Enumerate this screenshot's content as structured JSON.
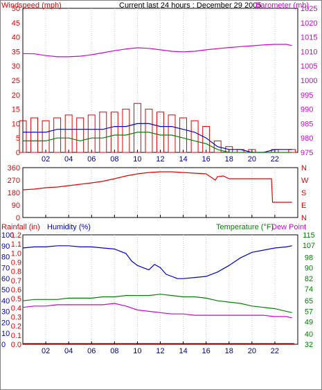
{
  "header": {
    "left_label": "Windspeed (mph)",
    "center_title": "Current last 24 hours : December 29 2005",
    "right_label": "Barometer (mb)"
  },
  "hour_ticks": [
    "02",
    "04",
    "06",
    "08",
    "10",
    "12",
    "14",
    "16",
    "18",
    "20",
    "22"
  ],
  "colors": {
    "windspeed": "#e00000",
    "windgust": "#e00000",
    "wind_avg": "#0000c0",
    "wind_low": "#008000",
    "barometer": "#d000d0",
    "direction": "#e00000",
    "humidity": "#0000c0",
    "temperature": "#008000",
    "dewpoint": "#d000d0",
    "rainfall": "#e00000",
    "frame": "#000000"
  },
  "chart_data": [
    {
      "type": "line",
      "title": "Current last 24 hours : December 29 2005",
      "xlabel": "",
      "ylabel": "Windspeed (mph)",
      "ylabel_right": "Barometer (mb)",
      "xlim": [
        0,
        24
      ],
      "ylim": [
        0,
        50
      ],
      "ylim_right": [
        975,
        1025
      ],
      "yticks": [
        0,
        5,
        10,
        15,
        20,
        25,
        30,
        35,
        40,
        45,
        50
      ],
      "yticks_right": [
        975,
        980,
        985,
        990,
        995,
        1000,
        1005,
        1010,
        1015,
        1020,
        1025
      ],
      "series": [
        {
          "name": "Windspeed (mph)",
          "axis": "left",
          "style": "bars",
          "x": [
            0,
            1,
            2,
            3,
            4,
            5,
            6,
            7,
            8,
            9,
            10,
            11,
            12,
            13,
            14,
            15,
            16,
            17,
            18,
            19,
            20,
            21,
            22,
            23.5
          ],
          "values": [
            11,
            12,
            11,
            12,
            13,
            12,
            13,
            14,
            14,
            15,
            17,
            15,
            14,
            13,
            12,
            11,
            9,
            4,
            2,
            1,
            1,
            0,
            1,
            1
          ]
        },
        {
          "name": "",
          "axis": "left",
          "x": [
            0,
            1,
            2,
            3,
            4,
            5,
            6,
            7,
            8,
            9,
            10,
            11,
            12,
            13,
            14,
            15,
            16,
            17,
            18,
            19,
            20,
            21,
            22,
            23.5
          ],
          "values": [
            7,
            7,
            7,
            8,
            8,
            8,
            8,
            8,
            9,
            9,
            10,
            10,
            9,
            9,
            8,
            7,
            5,
            2,
            1,
            1,
            0,
            0,
            1,
            1
          ]
        },
        {
          "name": "",
          "axis": "left",
          "x": [
            0,
            1,
            2,
            3,
            4,
            5,
            6,
            7,
            8,
            9,
            10,
            11,
            12,
            13,
            14,
            15,
            16,
            17,
            18,
            19,
            20,
            21,
            22,
            23.5
          ],
          "values": [
            4,
            4,
            4,
            5,
            5,
            4,
            5,
            5,
            6,
            6,
            7,
            7,
            6,
            6,
            5,
            4,
            3,
            1,
            0,
            0,
            0,
            0,
            0,
            0
          ]
        },
        {
          "name": "Barometer (mb)",
          "axis": "right",
          "x": [
            0,
            1,
            2,
            3,
            4,
            5,
            6,
            7,
            8,
            9,
            10,
            11,
            12,
            13,
            14,
            15,
            16,
            17,
            18,
            19,
            20,
            21,
            22,
            23,
            23.5
          ],
          "values": [
            1009.3,
            1009.2,
            1008.6,
            1008.2,
            1008.2,
            1008.4,
            1008.9,
            1009.6,
            1010.3,
            1010.9,
            1011.3,
            1011.1,
            1010.6,
            1010.1,
            1009.9,
            1010.1,
            1010.6,
            1011.0,
            1011.4,
            1011.7,
            1012.0,
            1012.3,
            1012.5,
            1012.5,
            1012.1
          ]
        }
      ]
    },
    {
      "type": "line",
      "title": "",
      "xlabel": "",
      "ylabel": "",
      "xlim": [
        0,
        24
      ],
      "ylim": [
        0,
        360
      ],
      "yticks": [
        0,
        90,
        180,
        270,
        360
      ],
      "right_labels": [
        "N",
        "W",
        "S",
        "E",
        "N"
      ],
      "series": [
        {
          "name": "",
          "x": [
            0,
            1,
            2,
            3,
            4,
            5,
            6,
            7,
            8,
            9,
            10,
            11,
            12,
            13,
            14,
            15,
            16,
            16.8,
            17,
            17.5,
            18,
            20,
            21.7,
            21.8,
            23.5
          ],
          "values": [
            200,
            205,
            215,
            220,
            230,
            240,
            250,
            262,
            280,
            300,
            315,
            325,
            330,
            330,
            325,
            320,
            315,
            270,
            295,
            300,
            280,
            280,
            280,
            110,
            110
          ]
        }
      ]
    },
    {
      "type": "line",
      "title": "",
      "xlabel": "",
      "ylabel": "Rainfall (in)",
      "ylabel_2": "Humidity (%)",
      "ylabel_right": "Temperature (°F)",
      "ylabel_right_2": "Dew Point",
      "xlim": [
        0,
        24
      ],
      "ylim": [
        0,
        100
      ],
      "ylim_rain": [
        0,
        1.2
      ],
      "ylim_right": [
        32,
        115
      ],
      "yticks": [
        0,
        10,
        20,
        30,
        40,
        50,
        60,
        70,
        80,
        90,
        100
      ],
      "yticks_rain": [
        0.0,
        0.1,
        0.2,
        0.3,
        0.4,
        0.5,
        0.6,
        0.7,
        0.8,
        0.9,
        1.0,
        1.1,
        1.2
      ],
      "yticks_right": [
        32,
        40,
        49,
        57,
        65,
        74,
        82,
        90,
        98,
        107,
        115
      ],
      "series": [
        {
          "name": "Humidity (%)",
          "axis": "left",
          "x": [
            0,
            1,
            2,
            3,
            4,
            5,
            6,
            7,
            8,
            9,
            9.5,
            10,
            10.5,
            11,
            11.5,
            12,
            12.5,
            13,
            13.5,
            14,
            15,
            16,
            17,
            18,
            19,
            20,
            21,
            22,
            23,
            23.5
          ],
          "values": [
            88,
            89,
            89,
            90,
            90,
            89,
            89,
            88,
            87,
            83,
            76,
            72,
            70,
            68,
            73,
            70,
            64,
            62,
            60,
            60,
            61,
            62,
            66,
            72,
            79,
            84,
            86,
            88,
            89,
            90
          ]
        },
        {
          "name": "Temperature (°F)",
          "axis": "right",
          "x": [
            0,
            1,
            2,
            3,
            4,
            5,
            6,
            7,
            8,
            9,
            10,
            11,
            12,
            13,
            14,
            15,
            16,
            17,
            18,
            19,
            20,
            21,
            22,
            23,
            23.5
          ],
          "values": [
            65,
            66,
            66,
            66,
            67,
            67,
            67,
            68,
            68,
            69,
            69,
            69,
            70,
            69,
            68,
            68,
            67,
            65,
            64,
            63,
            61,
            60,
            59,
            57,
            56
          ]
        },
        {
          "name": "Dew Point",
          "axis": "right",
          "x": [
            0,
            1,
            2,
            3,
            4,
            5,
            6,
            7,
            8,
            9,
            10,
            11,
            12,
            13,
            14,
            15,
            16,
            17,
            18,
            19,
            20,
            21,
            22,
            23,
            23.5
          ],
          "values": [
            60,
            61,
            61,
            62,
            62,
            62,
            62,
            62,
            63,
            61,
            58,
            57,
            56,
            55,
            55,
            54,
            54,
            54,
            54,
            54,
            54,
            54,
            53,
            53,
            52
          ]
        },
        {
          "name": "Rainfall (in)",
          "axis": "rain",
          "x": [
            0,
            23.7
          ],
          "values": [
            0,
            0
          ]
        }
      ]
    }
  ]
}
